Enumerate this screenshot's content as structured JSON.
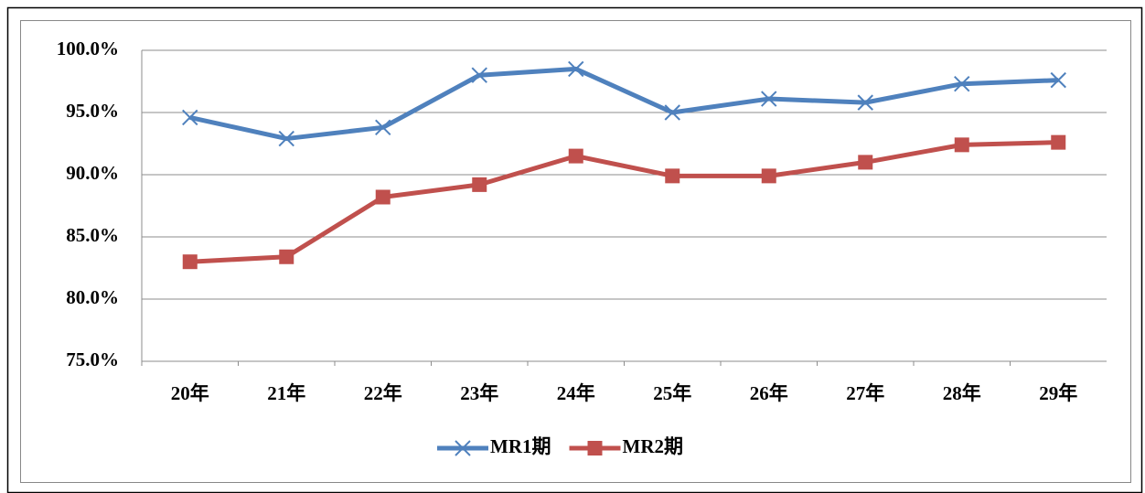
{
  "chart_data": {
    "type": "line",
    "categories": [
      "20年",
      "21年",
      "22年",
      "23年",
      "24年",
      "25年",
      "26年",
      "27年",
      "28年",
      "29年"
    ],
    "series": [
      {
        "name": "MR1期",
        "color": "#4f81bd",
        "marker": "x",
        "values": [
          94.6,
          92.9,
          93.8,
          98.0,
          98.5,
          95.0,
          96.1,
          95.8,
          97.3,
          97.6
        ]
      },
      {
        "name": "MR2期",
        "color": "#c0504d",
        "marker": "square",
        "values": [
          83.0,
          83.4,
          88.2,
          89.2,
          91.5,
          89.9,
          89.9,
          91.0,
          92.4,
          92.6
        ]
      }
    ],
    "ylim": [
      75,
      100
    ],
    "yticks": [
      {
        "value": 75,
        "label": "75.0%"
      },
      {
        "value": 80,
        "label": "80.0%"
      },
      {
        "value": 85,
        "label": "85.0%"
      },
      {
        "value": 90,
        "label": "90.0%"
      },
      {
        "value": 95,
        "label": "95.0%"
      },
      {
        "value": 100,
        "label": "100.0%"
      }
    ],
    "grid": true,
    "legend": "bottom"
  }
}
